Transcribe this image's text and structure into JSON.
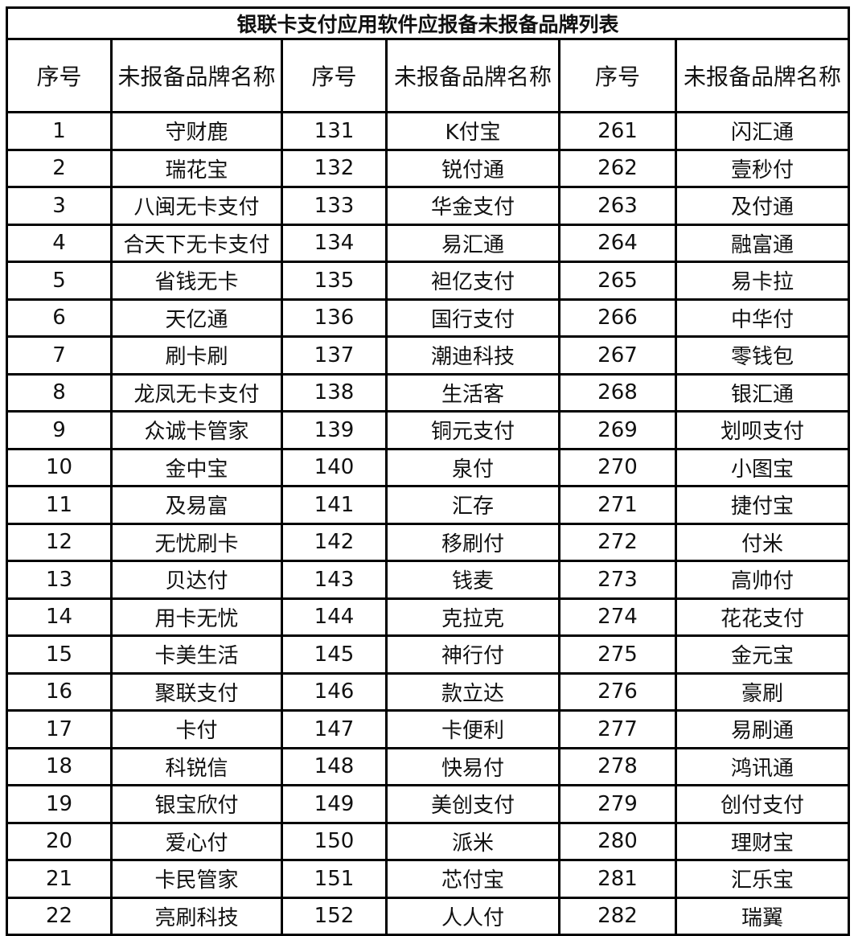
{
  "title": "银联卡支付应用软件应报备未报备品牌列表",
  "headers": [
    "序号",
    "未报备品牌名称",
    "序号",
    "未报备品牌名称",
    "序号",
    "未报备品牌名称"
  ],
  "rows": [
    [
      "1",
      "守财鹿",
      "131",
      "K付宝",
      "261",
      "闪汇通"
    ],
    [
      "2",
      "瑞花宝",
      "132",
      "锐付通",
      "262",
      "壹秒付"
    ],
    [
      "3",
      "八闽无卡支付",
      "133",
      "华金支付",
      "263",
      "及付通"
    ],
    [
      "4",
      "合天下无卡支付",
      "134",
      "易汇通",
      "264",
      "融富通"
    ],
    [
      "5",
      "省钱无卡",
      "135",
      "袒亿支付",
      "265",
      "易卡拉"
    ],
    [
      "6",
      "天亿通",
      "136",
      "国行支付",
      "266",
      "中华付"
    ],
    [
      "7",
      "刷卡刷",
      "137",
      "潮迪科技",
      "267",
      "零钱包"
    ],
    [
      "8",
      "龙凤无卡支付",
      "138",
      "生活客",
      "268",
      "银汇通"
    ],
    [
      "9",
      "众诚卡管家",
      "139",
      "铜元支付",
      "269",
      "划呗支付"
    ],
    [
      "10",
      "金中宝",
      "140",
      "泉付",
      "270",
      "小图宝"
    ],
    [
      "11",
      "及易富",
      "141",
      "汇存",
      "271",
      "捷付宝"
    ],
    [
      "12",
      "无忧刷卡",
      "142",
      "移刷付",
      "272",
      "付米"
    ],
    [
      "13",
      "贝达付",
      "143",
      "钱麦",
      "273",
      "高帅付"
    ],
    [
      "14",
      "用卡无忧",
      "144",
      "克拉克",
      "274",
      "花花支付"
    ],
    [
      "15",
      "卡美生活",
      "145",
      "神行付",
      "275",
      "金元宝"
    ],
    [
      "16",
      "聚联支付",
      "146",
      "款立达",
      "276",
      "豪刷"
    ],
    [
      "17",
      "卡付",
      "147",
      "卡便利",
      "277",
      "易刷通"
    ],
    [
      "18",
      "科锐信",
      "148",
      "快易付",
      "278",
      "鸿讯通"
    ],
    [
      "19",
      "银宝欣付",
      "149",
      "美创支付",
      "279",
      "创付支付"
    ],
    [
      "20",
      "爱心付",
      "150",
      "派米",
      "280",
      "理财宝"
    ],
    [
      "21",
      "卡民管家",
      "151",
      "芯付宝",
      "281",
      "汇乐宝"
    ],
    [
      "22",
      "亮刷科技",
      "152",
      "人人付",
      "282",
      "瑞翼"
    ]
  ]
}
